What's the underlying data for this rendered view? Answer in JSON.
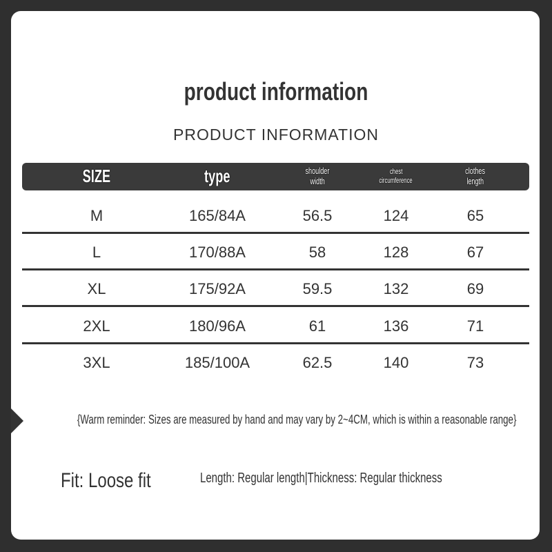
{
  "title": "product information",
  "subtitle": "PRODUCT INFORMATION",
  "table": {
    "headers": [
      {
        "line1": "SIZE",
        "line2": ""
      },
      {
        "line1": "type",
        "line2": ""
      },
      {
        "line1": "shoulder",
        "line2": "width"
      },
      {
        "line1": "chest",
        "line2": "circumference"
      },
      {
        "line1": "clothes",
        "line2": "length"
      }
    ],
    "rows": [
      [
        "M",
        "165/84A",
        "56.5",
        "124",
        "65"
      ],
      [
        "L",
        "170/88A",
        "58",
        "128",
        "67"
      ],
      [
        "XL",
        "175/92A",
        "59.5",
        "132",
        "69"
      ],
      [
        "2XL",
        "180/96A",
        "61",
        "136",
        "71"
      ],
      [
        "3XL",
        "185/100A",
        "62.5",
        "140",
        "73"
      ]
    ]
  },
  "reminder": "{Warm reminder: Sizes are measured by hand and may vary by 2~4CM, which is within a reasonable range}",
  "fit": "Fit: Loose fit",
  "details": "Length: Regular length|Thickness: Regular thickness",
  "colors": {
    "frame": "#2f2f2f",
    "header_bar": "#3a3a3a",
    "text": "#333333"
  }
}
